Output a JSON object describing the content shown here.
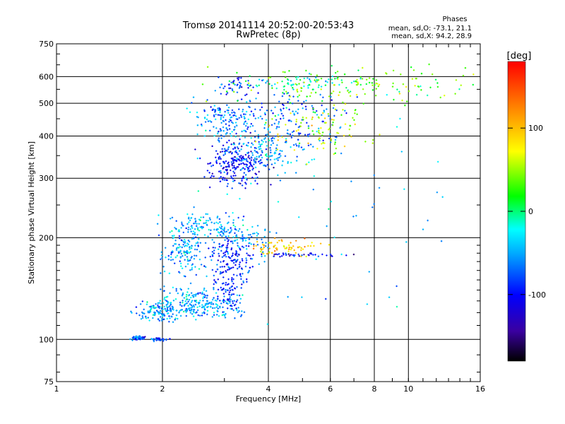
{
  "chart_data": {
    "type": "scatter",
    "title": "Tromsø 20141114 20:52:00-20:53:43",
    "subtitle": "RwPretec (8p)",
    "xlabel": "Frequency [MHz]",
    "ylabel": "Stationary phase Virtual Height [km]",
    "x_scale": "log2",
    "y_scale": "log",
    "xlim": [
      1,
      16
    ],
    "ylim": [
      75,
      750
    ],
    "x_ticks": [
      1,
      2,
      4,
      6,
      8,
      10,
      16
    ],
    "y_ticks": [
      75,
      100,
      200,
      300,
      400,
      500,
      600,
      750
    ],
    "grid": true,
    "phase_info": {
      "title": "Phases",
      "o_line": "mean, sd,O: -73.1, 21.1",
      "x_line": "mean, sd,X:  94.2, 28.9"
    },
    "colorbar": {
      "label": "[deg]",
      "range": [
        -180,
        180
      ],
      "ticks": [
        100,
        0,
        -100
      ]
    },
    "clusters": [
      {
        "x": 1.7,
        "y": 101,
        "sx": 0.05,
        "sy": 0.01,
        "phase": -75,
        "n": 60
      },
      {
        "x": 1.95,
        "y": 100,
        "sx": 0.05,
        "sy": 0.01,
        "phase": -80,
        "n": 40
      },
      {
        "x": 1.95,
        "y": 120,
        "sx": 0.12,
        "sy": 0.05,
        "phase": -55,
        "n": 110
      },
      {
        "x": 2.3,
        "y": 128,
        "sx": 0.16,
        "sy": 0.09,
        "phase": -50,
        "n": 130
      },
      {
        "x": 2.8,
        "y": 125,
        "sx": 0.2,
        "sy": 0.08,
        "phase": -45,
        "n": 110
      },
      {
        "x": 2.35,
        "y": 180,
        "sx": 0.14,
        "sy": 0.12,
        "phase": -50,
        "n": 140
      },
      {
        "x": 2.7,
        "y": 215,
        "sx": 0.22,
        "sy": 0.08,
        "phase": -48,
        "n": 140
      },
      {
        "x": 3.15,
        "y": 170,
        "sx": 0.12,
        "sy": 0.16,
        "phase": -90,
        "n": 160
      },
      {
        "x": 3.1,
        "y": 135,
        "sx": 0.07,
        "sy": 0.1,
        "phase": -85,
        "n": 60
      },
      {
        "x": 3.45,
        "y": 200,
        "sx": 0.15,
        "sy": 0.07,
        "phase": -55,
        "n": 60
      },
      {
        "x": 3.25,
        "y": 330,
        "sx": 0.15,
        "sy": 0.12,
        "phase": -100,
        "n": 230
      },
      {
        "x": 3.05,
        "y": 450,
        "sx": 0.2,
        "sy": 0.13,
        "phase": -60,
        "n": 150
      },
      {
        "x": 3.3,
        "y": 570,
        "sx": 0.12,
        "sy": 0.05,
        "phase": -90,
        "n": 40
      },
      {
        "x": 4.0,
        "y": 360,
        "sx": 0.2,
        "sy": 0.14,
        "phase": -55,
        "n": 140
      },
      {
        "x": 4.7,
        "y": 450,
        "sx": 0.3,
        "sy": 0.16,
        "phase": -70,
        "n": 140
      },
      {
        "x": 5.5,
        "y": 420,
        "sx": 0.25,
        "sy": 0.15,
        "phase": 60,
        "n": 90
      },
      {
        "x": 5.2,
        "y": 580,
        "sx": 0.35,
        "sy": 0.06,
        "phase": -20,
        "n": 70
      },
      {
        "x": 6.8,
        "y": 560,
        "sx": 0.5,
        "sy": 0.12,
        "phase": 40,
        "n": 80
      },
      {
        "x": 8.8,
        "y": 560,
        "sx": 0.9,
        "sy": 0.1,
        "phase": 30,
        "n": 80
      },
      {
        "x": 4.4,
        "y": 188,
        "sx": 0.2,
        "sy": 0.05,
        "phase": 95,
        "n": 70
      },
      {
        "x": 4.7,
        "y": 178,
        "sx": 0.35,
        "sy": 0.01,
        "phase": -105,
        "n": 45
      },
      {
        "x": 6.6,
        "y": 240,
        "sx": 0.8,
        "sy": 0.6,
        "phase": -40,
        "n": 60
      }
    ]
  }
}
